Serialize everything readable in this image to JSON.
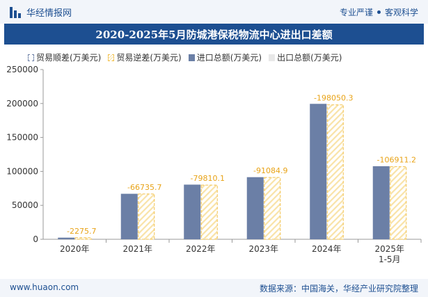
{
  "header": {
    "brand_name": "华经情报网",
    "slogan_left": "专业严谨",
    "slogan_right": "客观科学"
  },
  "colors": {
    "brand": "#1d4f91",
    "import_bar": "#6b7fa6",
    "export_bar": "#e8e8e8",
    "deficit_hatch": "#f2c14e",
    "label_orange": "#e8a317"
  },
  "chart_data": {
    "type": "bar",
    "title": "2020-2025年5月防城港保税物流中心进出口差额",
    "categories": [
      "2020年",
      "2021年",
      "2022年",
      "2023年",
      "2024年",
      "2025年\n1-5月"
    ],
    "series": [
      {
        "name": "贸易顺差(万美元)",
        "values": [
          0,
          0,
          0,
          0,
          0,
          0
        ]
      },
      {
        "name": "贸易逆差(万美元)",
        "values": [
          2275.7,
          66735.7,
          79810.1,
          91084.9,
          198050.3,
          106911.2
        ]
      },
      {
        "name": "进口总额(万美元)",
        "values": [
          2400,
          67000,
          80500,
          91500,
          199500,
          107600
        ]
      },
      {
        "name": "出口总额(万美元)",
        "values": [
          125,
          265,
          690,
          415,
          1450,
          690
        ]
      }
    ],
    "data_labels": [
      "-2275.7",
      "-66735.7",
      "-79810.1",
      "-91084.9",
      "-198050.3",
      "-106911.2"
    ],
    "y_ticks": [
      "0",
      "50000",
      "100000",
      "150000",
      "200000",
      "250000"
    ],
    "ylim": [
      0,
      250000
    ],
    "legend_position": "top-left",
    "grid": false
  },
  "footer": {
    "website": "www.huaon.com",
    "source": "数据来源：中国海关，华经产业研究院整理"
  }
}
